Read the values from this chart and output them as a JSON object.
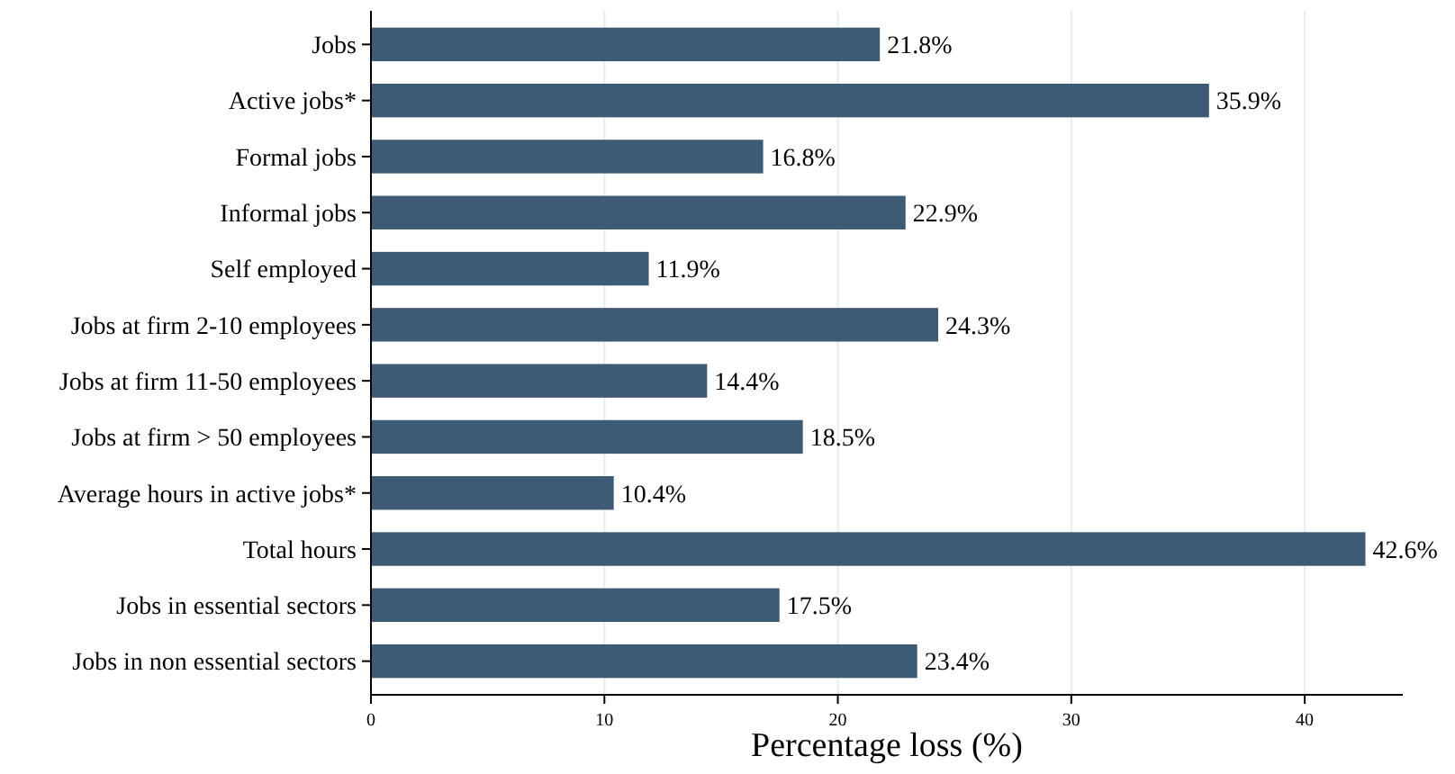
{
  "chart_data": {
    "type": "bar",
    "orientation": "horizontal",
    "xlabel": "Percentage loss (%)",
    "categories": [
      "Jobs",
      "Active jobs*",
      "Formal jobs",
      "Informal jobs",
      "Self employed",
      "Jobs at firm 2-10 employees",
      "Jobs at firm 11-50 employees",
      "Jobs at firm > 50 employees",
      "Average hours in active jobs*",
      "Total hours",
      "Jobs in essential sectors",
      "Jobs in non essential sectors"
    ],
    "values": [
      21.8,
      35.9,
      16.8,
      22.9,
      11.9,
      24.3,
      14.4,
      18.5,
      10.4,
      42.6,
      17.5,
      23.4
    ],
    "value_labels": [
      "21.8%",
      "35.9%",
      "16.8%",
      "22.9%",
      "11.9%",
      "24.3%",
      "14.4%",
      "18.5%",
      "10.4%",
      "42.6%",
      "17.5%",
      "23.4%"
    ],
    "color": "#3d5b74",
    "xlim": [
      0,
      44.2
    ],
    "xticks": [
      0,
      10,
      20,
      30,
      40
    ],
    "grid": "x"
  }
}
